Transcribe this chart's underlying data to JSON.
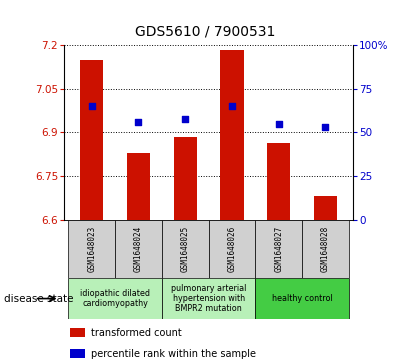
{
  "title": "GDS5610 / 7900531",
  "samples": [
    "GSM1648023",
    "GSM1648024",
    "GSM1648025",
    "GSM1648026",
    "GSM1648027",
    "GSM1648028"
  ],
  "bar_values": [
    7.15,
    6.83,
    6.885,
    7.185,
    6.865,
    6.68
  ],
  "dot_values": [
    6.99,
    6.935,
    6.945,
    6.99,
    6.93,
    6.92
  ],
  "ylim": [
    6.6,
    7.2
  ],
  "y2lim": [
    0,
    100
  ],
  "yticks": [
    6.6,
    6.75,
    6.9,
    7.05,
    7.2
  ],
  "y2ticks": [
    0,
    25,
    50,
    75,
    100
  ],
  "ytick_labels": [
    "6.6",
    "6.75",
    "6.9",
    "7.05",
    "7.2"
  ],
  "y2tick_labels": [
    "0",
    "25",
    "50",
    "75",
    "100%"
  ],
  "bar_color": "#cc1100",
  "dot_color": "#0000cc",
  "groups": [
    {
      "label": "idiopathic dilated\ncardiomyopathy",
      "indices": [
        0,
        1
      ],
      "color": "#b8f0b8"
    },
    {
      "label": "pulmonary arterial\nhypertension with\nBMPR2 mutation",
      "indices": [
        2,
        3
      ],
      "color": "#b8f0b8"
    },
    {
      "label": "healthy control",
      "indices": [
        4,
        5
      ],
      "color": "#44cc44"
    }
  ],
  "sample_box_color": "#d0d0d0",
  "plot_bg_color": "#ffffff",
  "legend_bar": "transformed count",
  "legend_dot": "percentile rank within the sample"
}
